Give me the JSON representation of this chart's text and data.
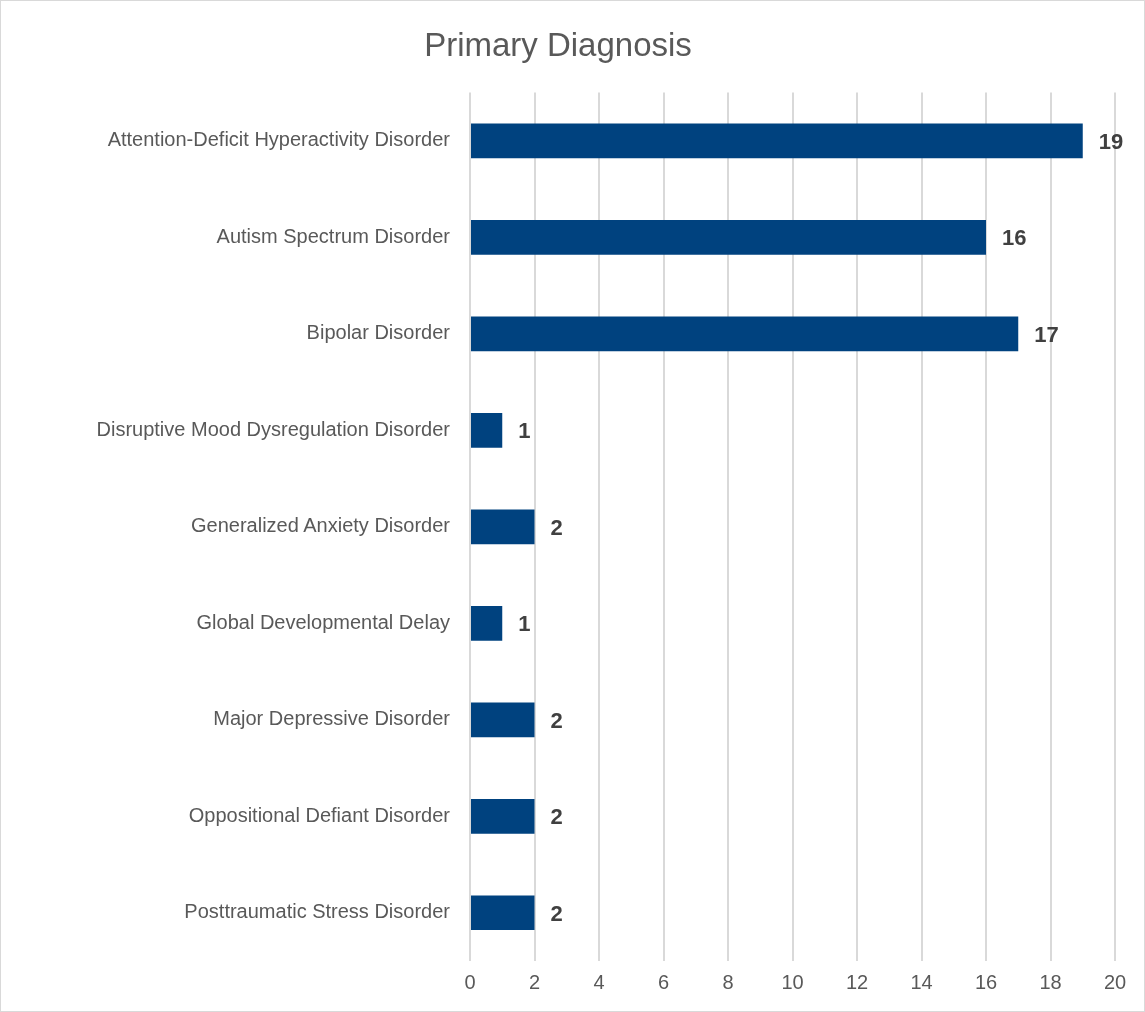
{
  "chart_data": {
    "type": "bar",
    "orientation": "horizontal",
    "title": "Primary Diagnosis",
    "categories": [
      "Attention-Deficit Hyperactivity Disorder",
      "Autism Spectrum Disorder",
      "Bipolar Disorder",
      "Disruptive Mood Dysregulation Disorder",
      "Generalized Anxiety Disorder",
      "Global Developmental Delay",
      "Major Depressive Disorder",
      "Oppositional Defiant Disorder",
      "Posttraumatic Stress Disorder"
    ],
    "values": [
      19,
      16,
      17,
      1,
      2,
      1,
      2,
      2,
      2
    ],
    "color": "#00427f",
    "xlim": [
      0,
      20
    ],
    "xticks": [
      0,
      2,
      4,
      6,
      8,
      10,
      12,
      14,
      16,
      18,
      20
    ],
    "grid": "x",
    "data_labels": true
  }
}
